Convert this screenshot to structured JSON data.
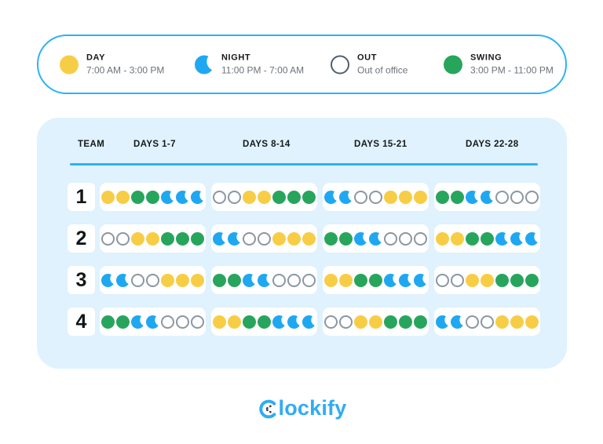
{
  "legend": {
    "items": [
      {
        "id": "day",
        "label": "DAY",
        "time": "7:00 AM - 3:00 PM",
        "icon": "day-circle-icon",
        "color": "#F8CD46"
      },
      {
        "id": "night",
        "label": "NIGHT",
        "time": "11:00 PM - 7:00 AM",
        "icon": "night-crescent-icon",
        "color": "#1FA8F1"
      },
      {
        "id": "out",
        "label": "OUT",
        "time": "Out of office",
        "icon": "out-circle-icon",
        "color": "#FFFFFF"
      },
      {
        "id": "swing",
        "label": "SWING",
        "time": "3:00 PM - 11:00 PM",
        "icon": "swing-circle-icon",
        "color": "#28A55C"
      }
    ]
  },
  "schedule": {
    "columns": [
      "TEAM",
      "DAYS 1-7",
      "DAYS 8-14",
      "DAYS 15-21",
      "DAYS 22-28"
    ],
    "teams": [
      {
        "team": "1",
        "weeks": [
          [
            "day",
            "day",
            "swing",
            "swing",
            "night",
            "night",
            "night"
          ],
          [
            "out",
            "out",
            "day",
            "day",
            "swing",
            "swing",
            "swing"
          ],
          [
            "night",
            "night",
            "out",
            "out",
            "day",
            "day",
            "day"
          ],
          [
            "swing",
            "swing",
            "night",
            "night",
            "out",
            "out",
            "out"
          ]
        ]
      },
      {
        "team": "2",
        "weeks": [
          [
            "out",
            "out",
            "day",
            "day",
            "swing",
            "swing",
            "swing"
          ],
          [
            "night",
            "night",
            "out",
            "out",
            "day",
            "day",
            "day"
          ],
          [
            "swing",
            "swing",
            "night",
            "night",
            "out",
            "out",
            "out"
          ],
          [
            "day",
            "day",
            "swing",
            "swing",
            "night",
            "night",
            "night"
          ]
        ]
      },
      {
        "team": "3",
        "weeks": [
          [
            "night",
            "night",
            "out",
            "out",
            "day",
            "day",
            "day"
          ],
          [
            "swing",
            "swing",
            "night",
            "night",
            "out",
            "out",
            "out"
          ],
          [
            "day",
            "day",
            "swing",
            "swing",
            "night",
            "night",
            "night"
          ],
          [
            "out",
            "out",
            "day",
            "day",
            "swing",
            "swing",
            "swing"
          ]
        ]
      },
      {
        "team": "4",
        "weeks": [
          [
            "swing",
            "swing",
            "night",
            "night",
            "out",
            "out",
            "out"
          ],
          [
            "day",
            "day",
            "swing",
            "swing",
            "night",
            "night",
            "night"
          ],
          [
            "out",
            "out",
            "day",
            "day",
            "swing",
            "swing",
            "swing"
          ],
          [
            "night",
            "night",
            "out",
            "out",
            "day",
            "day",
            "day"
          ]
        ]
      }
    ]
  },
  "footer": {
    "logo_text": "Clockify"
  },
  "colors": {
    "day": "#F8CD46",
    "night": "#1FA8F1",
    "swing": "#28A55C",
    "out_border_legend": "#515E69",
    "out_border_cell": "#8B97A3",
    "accent_blue": "#2BB3F3",
    "panel_background": "#DFF2FD",
    "logo_blue": "#2FACF5"
  },
  "chart_data": {
    "type": "table",
    "columns": [
      "TEAM",
      "DAYS 1-7",
      "DAYS 8-14",
      "DAYS 15-21",
      "DAYS 22-28"
    ],
    "legend": [
      {
        "code": "day",
        "label": "DAY",
        "hours": "7:00 AM - 3:00 PM"
      },
      {
        "code": "night",
        "label": "NIGHT",
        "hours": "11:00 PM - 7:00 AM"
      },
      {
        "code": "out",
        "label": "OUT",
        "hours": "Out of office"
      },
      {
        "code": "swing",
        "label": "SWING",
        "hours": "3:00 PM - 11:00 PM"
      }
    ],
    "rows": [
      {
        "team": "1",
        "days_1_7": [
          "day",
          "day",
          "swing",
          "swing",
          "night",
          "night",
          "night"
        ],
        "days_8_14": [
          "out",
          "out",
          "day",
          "day",
          "swing",
          "swing",
          "swing"
        ],
        "days_15_21": [
          "night",
          "night",
          "out",
          "out",
          "day",
          "day",
          "day"
        ],
        "days_22_28": [
          "swing",
          "swing",
          "night",
          "night",
          "out",
          "out",
          "out"
        ]
      },
      {
        "team": "2",
        "days_1_7": [
          "out",
          "out",
          "day",
          "day",
          "swing",
          "swing",
          "swing"
        ],
        "days_8_14": [
          "night",
          "night",
          "out",
          "out",
          "day",
          "day",
          "day"
        ],
        "days_15_21": [
          "swing",
          "swing",
          "night",
          "night",
          "out",
          "out",
          "out"
        ],
        "days_22_28": [
          "day",
          "day",
          "swing",
          "swing",
          "night",
          "night",
          "night"
        ]
      },
      {
        "team": "3",
        "days_1_7": [
          "night",
          "night",
          "out",
          "out",
          "day",
          "day",
          "day"
        ],
        "days_8_14": [
          "swing",
          "swing",
          "night",
          "night",
          "out",
          "out",
          "out"
        ],
        "days_15_21": [
          "day",
          "day",
          "swing",
          "swing",
          "night",
          "night",
          "night"
        ],
        "days_22_28": [
          "out",
          "out",
          "day",
          "day",
          "swing",
          "swing",
          "swing"
        ]
      },
      {
        "team": "4",
        "days_1_7": [
          "swing",
          "swing",
          "night",
          "night",
          "out",
          "out",
          "out"
        ],
        "days_8_14": [
          "day",
          "day",
          "swing",
          "swing",
          "night",
          "night",
          "night"
        ],
        "days_15_21": [
          "out",
          "out",
          "day",
          "day",
          "swing",
          "swing",
          "swing"
        ],
        "days_22_28": [
          "night",
          "night",
          "out",
          "out",
          "day",
          "day",
          "day"
        ]
      }
    ]
  }
}
